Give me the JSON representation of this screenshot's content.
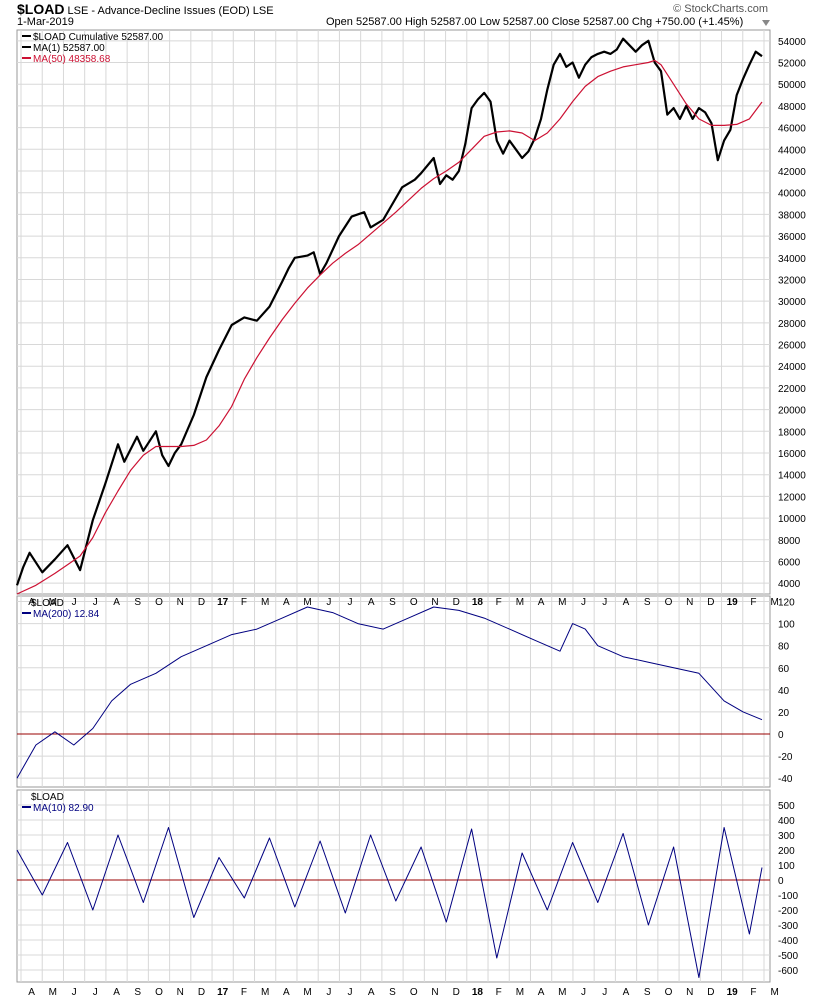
{
  "header": {
    "symbol": "$LOAD",
    "description": "LSE - Advance-Decline Issues (EOD) LSE",
    "date": "1-Mar-2019",
    "brand": "© StockCharts.com",
    "open_label": "Open",
    "open": "52587.00",
    "high_label": "High",
    "high": "52587.00",
    "low_label": "Low",
    "low": "52587.00",
    "close_label": "Close",
    "close": "52587.00",
    "chg_label": "Chg",
    "chg": "+750.00 (+1.45%)"
  },
  "colors": {
    "price": "#000000",
    "ma50": "#cc1133",
    "osc": "#000080",
    "zero": "#990000",
    "grid": "#d8d8d8"
  },
  "x_axis": {
    "labels": [
      {
        "label": "A",
        "bold": false
      },
      {
        "label": "M",
        "bold": false
      },
      {
        "label": "J",
        "bold": false
      },
      {
        "label": "J",
        "bold": false
      },
      {
        "label": "A",
        "bold": false
      },
      {
        "label": "S",
        "bold": false
      },
      {
        "label": "O",
        "bold": false
      },
      {
        "label": "N",
        "bold": false
      },
      {
        "label": "D",
        "bold": false
      },
      {
        "label": "17",
        "bold": true
      },
      {
        "label": "F",
        "bold": false
      },
      {
        "label": "M",
        "bold": false
      },
      {
        "label": "A",
        "bold": false
      },
      {
        "label": "M",
        "bold": false
      },
      {
        "label": "J",
        "bold": false
      },
      {
        "label": "J",
        "bold": false
      },
      {
        "label": "A",
        "bold": false
      },
      {
        "label": "S",
        "bold": false
      },
      {
        "label": "O",
        "bold": false
      },
      {
        "label": "N",
        "bold": false
      },
      {
        "label": "D",
        "bold": false
      },
      {
        "label": "18",
        "bold": true
      },
      {
        "label": "F",
        "bold": false
      },
      {
        "label": "M",
        "bold": false
      },
      {
        "label": "A",
        "bold": false
      },
      {
        "label": "M",
        "bold": false
      },
      {
        "label": "J",
        "bold": false
      },
      {
        "label": "J",
        "bold": false
      },
      {
        "label": "A",
        "bold": false
      },
      {
        "label": "S",
        "bold": false
      },
      {
        "label": "O",
        "bold": false
      },
      {
        "label": "N",
        "bold": false
      },
      {
        "label": "D",
        "bold": false
      },
      {
        "label": "19",
        "bold": true
      },
      {
        "label": "F",
        "bold": false
      },
      {
        "label": "M",
        "bold": false
      }
    ]
  },
  "chart_data": [
    {
      "type": "line",
      "panel": "main",
      "title": "$LOAD LSE - Advance-Decline Issues (EOD) LSE",
      "legend": [
        {
          "text": "$LOAD Cumulative 52587.00",
          "color": "#000000"
        },
        {
          "text": "MA(1) 52587.00",
          "color": "#000000"
        },
        {
          "text": "MA(50) 48358.68",
          "color": "#cc1133"
        }
      ],
      "ylim": [
        3000,
        55000
      ],
      "yticks": [
        "4000",
        "6000",
        "8000",
        "10000",
        "12000",
        "14000",
        "16000",
        "18000",
        "20000",
        "22000",
        "24000",
        "26000",
        "28000",
        "30000",
        "32000",
        "34000",
        "36000",
        "38000",
        "40000",
        "42000",
        "44000",
        "46000",
        "48000",
        "50000",
        "52000",
        "54000"
      ],
      "series": [
        {
          "name": "$LOAD Cumulative",
          "color": "#000000",
          "width": 2.2,
          "points": [
            [
              0,
              3800
            ],
            [
              1,
              5500
            ],
            [
              2,
              6800
            ],
            [
              4,
              5000
            ],
            [
              6,
              6200
            ],
            [
              8,
              7500
            ],
            [
              10,
              5200
            ],
            [
              12,
              9800
            ],
            [
              14,
              13200
            ],
            [
              16,
              16800
            ],
            [
              17,
              15200
            ],
            [
              19,
              17500
            ],
            [
              20,
              16200
            ],
            [
              22,
              18000
            ],
            [
              23,
              15800
            ],
            [
              24,
              14800
            ],
            [
              25,
              16000
            ],
            [
              26,
              16800
            ],
            [
              28,
              19500
            ],
            [
              30,
              23000
            ],
            [
              32,
              25500
            ],
            [
              34,
              27800
            ],
            [
              36,
              28500
            ],
            [
              38,
              28200
            ],
            [
              40,
              29500
            ],
            [
              42,
              31800
            ],
            [
              43,
              33000
            ],
            [
              44,
              34000
            ],
            [
              46,
              34200
            ],
            [
              47,
              34500
            ],
            [
              48,
              32500
            ],
            [
              49,
              33500
            ],
            [
              51,
              36000
            ],
            [
              53,
              37800
            ],
            [
              55,
              38200
            ],
            [
              56,
              36800
            ],
            [
              58,
              37500
            ],
            [
              59,
              38500
            ],
            [
              61,
              40500
            ],
            [
              63,
              41200
            ],
            [
              64,
              41800
            ],
            [
              66,
              43200
            ],
            [
              67,
              40800
            ],
            [
              68,
              41600
            ],
            [
              69,
              41200
            ],
            [
              70,
              42000
            ],
            [
              71,
              44500
            ],
            [
              72,
              47800
            ],
            [
              73,
              48600
            ],
            [
              74,
              49200
            ],
            [
              75,
              48400
            ],
            [
              76,
              44800
            ],
            [
              77,
              43600
            ],
            [
              78,
              44800
            ],
            [
              79,
              44000
            ],
            [
              80,
              43200
            ],
            [
              81,
              43800
            ],
            [
              82,
              45000
            ],
            [
              83,
              46800
            ],
            [
              84,
              49500
            ],
            [
              85,
              51800
            ],
            [
              86,
              52800
            ],
            [
              87,
              51600
            ],
            [
              88,
              52000
            ],
            [
              89,
              50600
            ],
            [
              90,
              51800
            ],
            [
              91,
              52500
            ],
            [
              92,
              52800
            ],
            [
              93,
              53000
            ],
            [
              94,
              52800
            ],
            [
              95,
              53200
            ],
            [
              96,
              54200
            ],
            [
              97,
              53600
            ],
            [
              98,
              53000
            ],
            [
              99,
              53600
            ],
            [
              100,
              54000
            ],
            [
              101,
              52000
            ],
            [
              102,
              51200
            ],
            [
              103,
              47200
            ],
            [
              104,
              47800
            ],
            [
              105,
              46800
            ],
            [
              106,
              48000
            ],
            [
              107,
              46800
            ],
            [
              108,
              47800
            ],
            [
              109,
              47400
            ],
            [
              110,
              46400
            ],
            [
              111,
              43000
            ],
            [
              112,
              44800
            ],
            [
              113,
              45800
            ],
            [
              114,
              49000
            ],
            [
              115,
              50500
            ],
            [
              116,
              51800
            ],
            [
              117,
              53000
            ],
            [
              118,
              52587
            ]
          ]
        },
        {
          "name": "MA(50)",
          "color": "#cc1133",
          "width": 1.2,
          "points": [
            [
              0,
              3000
            ],
            [
              3,
              3800
            ],
            [
              6,
              4900
            ],
            [
              8,
              5700
            ],
            [
              10,
              6500
            ],
            [
              12,
              8200
            ],
            [
              14,
              10500
            ],
            [
              16,
              12500
            ],
            [
              18,
              14400
            ],
            [
              20,
              15800
            ],
            [
              22,
              16600
            ],
            [
              24,
              16600
            ],
            [
              26,
              16600
            ],
            [
              28,
              16700
            ],
            [
              30,
              17200
            ],
            [
              32,
              18500
            ],
            [
              34,
              20300
            ],
            [
              36,
              22800
            ],
            [
              38,
              24800
            ],
            [
              40,
              26600
            ],
            [
              42,
              28300
            ],
            [
              44,
              29800
            ],
            [
              46,
              31200
            ],
            [
              48,
              32400
            ],
            [
              50,
              33500
            ],
            [
              52,
              34400
            ],
            [
              54,
              35200
            ],
            [
              56,
              36200
            ],
            [
              58,
              37200
            ],
            [
              60,
              38200
            ],
            [
              62,
              39300
            ],
            [
              64,
              40400
            ],
            [
              66,
              41300
            ],
            [
              68,
              42000
            ],
            [
              70,
              42800
            ],
            [
              72,
              44000
            ],
            [
              74,
              45200
            ],
            [
              76,
              45600
            ],
            [
              78,
              45700
            ],
            [
              80,
              45500
            ],
            [
              82,
              44800
            ],
            [
              84,
              45500
            ],
            [
              86,
              46800
            ],
            [
              88,
              48400
            ],
            [
              90,
              49800
            ],
            [
              92,
              50700
            ],
            [
              94,
              51200
            ],
            [
              96,
              51600
            ],
            [
              98,
              51800
            ],
            [
              100,
              52000
            ],
            [
              101,
              52200
            ],
            [
              102,
              51800
            ],
            [
              104,
              50000
            ],
            [
              106,
              48200
            ],
            [
              108,
              46800
            ],
            [
              110,
              46200
            ],
            [
              112,
              46200
            ],
            [
              114,
              46300
            ],
            [
              116,
              46800
            ],
            [
              118,
              48358
            ]
          ]
        }
      ]
    },
    {
      "type": "line",
      "panel": "ma200",
      "legend": [
        {
          "text": "$LOAD",
          "color": "#000000"
        },
        {
          "text": "MA(200) 12.84",
          "color": "#000080"
        }
      ],
      "ylim": [
        -48,
        125
      ],
      "yticks": [
        "120",
        "100",
        "80",
        "60",
        "40",
        "20",
        "0",
        "-20",
        "-40"
      ],
      "zero_line": 0,
      "series": [
        {
          "name": "MA(200)",
          "color": "#000080",
          "width": 1,
          "points": [
            [
              0,
              -40
            ],
            [
              3,
              -10
            ],
            [
              6,
              2
            ],
            [
              9,
              -10
            ],
            [
              12,
              5
            ],
            [
              15,
              30
            ],
            [
              18,
              45
            ],
            [
              22,
              55
            ],
            [
              26,
              70
            ],
            [
              30,
              80
            ],
            [
              34,
              90
            ],
            [
              38,
              95
            ],
            [
              42,
              105
            ],
            [
              46,
              115
            ],
            [
              50,
              110
            ],
            [
              54,
              100
            ],
            [
              58,
              95
            ],
            [
              62,
              105
            ],
            [
              66,
              115
            ],
            [
              70,
              112
            ],
            [
              74,
              105
            ],
            [
              78,
              95
            ],
            [
              82,
              85
            ],
            [
              86,
              75
            ],
            [
              88,
              100
            ],
            [
              90,
              95
            ],
            [
              92,
              80
            ],
            [
              96,
              70
            ],
            [
              100,
              65
            ],
            [
              104,
              60
            ],
            [
              108,
              55
            ],
            [
              112,
              30
            ],
            [
              115,
              20
            ],
            [
              118,
              13
            ]
          ]
        }
      ]
    },
    {
      "type": "line",
      "panel": "ma10",
      "legend": [
        {
          "text": "$LOAD",
          "color": "#000000"
        },
        {
          "text": "MA(10) 82.90",
          "color": "#000080"
        }
      ],
      "ylim": [
        -680,
        600
      ],
      "yticks": [
        "500",
        "400",
        "300",
        "200",
        "100",
        "0",
        "-100",
        "-200",
        "-300",
        "-400",
        "-500",
        "-600"
      ],
      "zero_line": 0,
      "series": [
        {
          "name": "MA(10)",
          "color": "#000080",
          "width": 1,
          "points": [
            [
              0,
              200
            ],
            [
              4,
              -100
            ],
            [
              8,
              250
            ],
            [
              12,
              -200
            ],
            [
              16,
              300
            ],
            [
              20,
              -150
            ],
            [
              24,
              350
            ],
            [
              28,
              -250
            ],
            [
              32,
              150
            ],
            [
              36,
              -120
            ],
            [
              40,
              280
            ],
            [
              44,
              -180
            ],
            [
              48,
              260
            ],
            [
              52,
              -220
            ],
            [
              56,
              300
            ],
            [
              60,
              -140
            ],
            [
              64,
              220
            ],
            [
              68,
              -280
            ],
            [
              72,
              340
            ],
            [
              76,
              -520
            ],
            [
              80,
              180
            ],
            [
              84,
              -200
            ],
            [
              88,
              250
            ],
            [
              92,
              -150
            ],
            [
              96,
              310
            ],
            [
              100,
              -300
            ],
            [
              104,
              220
            ],
            [
              108,
              -650
            ],
            [
              112,
              350
            ],
            [
              116,
              -360
            ],
            [
              118,
              83
            ]
          ]
        }
      ]
    }
  ]
}
